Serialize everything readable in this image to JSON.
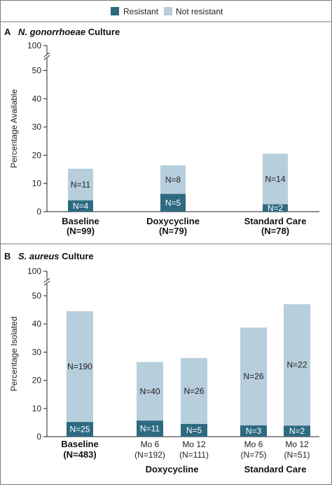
{
  "colors": {
    "resistant": "#2e6a82",
    "not_resistant": "#b7cedc",
    "panel_bg": "#ffffff",
    "frame": "#7a7a7a"
  },
  "legend": {
    "resistant": "Resistant",
    "not_resistant": "Not resistant"
  },
  "chart_data": [
    {
      "type": "bar",
      "stacked": true,
      "panel_letter": "A",
      "title_italic": "N. gonorrhoeae",
      "title_rest": " Culture",
      "ylabel": "Percentage Available",
      "ylim": [
        0,
        100
      ],
      "axis_break": true,
      "yticks": [
        "0",
        "10",
        "20",
        "30",
        "40",
        "50",
        "100"
      ],
      "categories": [
        {
          "label": "Baseline",
          "sublabel": "(N=99)"
        },
        {
          "label": "Doxycycline",
          "sublabel": "(N=79)"
        },
        {
          "label": "Standard Care",
          "sublabel": "(N=78)"
        }
      ],
      "series": [
        {
          "name": "Resistant",
          "values": [
            4.0,
            6.3,
            2.6
          ],
          "labels": [
            "N=4",
            "N=5",
            "N=2"
          ]
        },
        {
          "name": "Not resistant",
          "values": [
            11.2,
            10.1,
            17.9
          ],
          "labels": [
            "N=11",
            "N=8",
            "N=14"
          ]
        }
      ]
    },
    {
      "type": "bar",
      "stacked": true,
      "panel_letter": "B",
      "title_italic": "S. aureus",
      "title_rest": " Culture",
      "ylabel": "Percentage Isolated",
      "ylim": [
        0,
        100
      ],
      "axis_break": true,
      "yticks": [
        "0",
        "10",
        "20",
        "30",
        "40",
        "50",
        "100"
      ],
      "categories": [
        {
          "label": "Baseline",
          "sublabel": "(N=483)",
          "bold": true
        },
        {
          "label": "Mo 6",
          "sublabel": "(N=192)"
        },
        {
          "label": "Mo 12",
          "sublabel": "(N=111)"
        },
        {
          "label": "Mo 6",
          "sublabel": "(N=75)"
        },
        {
          "label": "Mo 12",
          "sublabel": "(N=51)"
        }
      ],
      "groups": [
        "Doxycycline",
        "Standard Care"
      ],
      "series": [
        {
          "name": "Resistant",
          "values": [
            5.2,
            5.7,
            4.5,
            4.0,
            3.9
          ],
          "labels": [
            "N=25",
            "N=11",
            "N=5",
            "N=3",
            "N=2"
          ]
        },
        {
          "name": "Not resistant",
          "values": [
            39.3,
            20.8,
            23.4,
            34.7,
            43.1
          ],
          "labels": [
            "N=190",
            "N=40",
            "N=26",
            "N=26",
            "N=22"
          ]
        }
      ]
    }
  ]
}
